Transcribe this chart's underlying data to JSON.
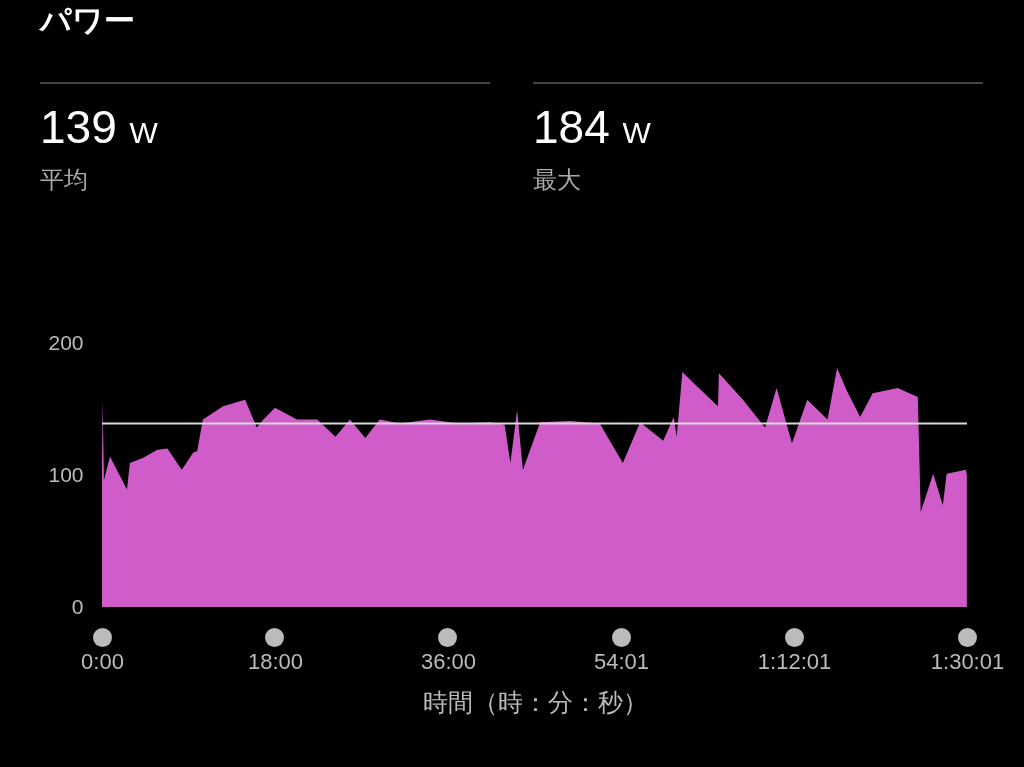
{
  "chart_data": {
    "type": "area",
    "title": "パワー",
    "xlabel": "時間（時：分：秒）",
    "annotations": [
      "139 W",
      "平均",
      "184 W",
      "最大"
    ],
    "x": [
      0,
      0.07,
      0.2,
      0.83,
      2.6,
      2.9,
      4.3,
      5.7,
      6.8,
      8.3,
      9.5,
      9.9,
      10.5,
      12.6,
      14.9,
      16.1,
      16.8,
      18.0,
      20.3,
      22.4,
      24.3,
      25.8,
      27.4,
      28.9,
      31.0,
      34.1,
      37.2,
      40.4,
      41.9,
      42.5,
      43.2,
      43.8,
      45.6,
      48.7,
      51.8,
      54.2,
      56.0,
      58.4,
      59.5,
      59.8,
      60.4,
      61.5,
      64.1,
      64.2,
      66.7,
      69.0,
      70.2,
      71.8,
      73.4,
      75.5,
      76.5,
      77.5,
      78.9,
      80.2,
      82.8,
      84.9,
      85.2,
      86.5,
      87.5,
      87.9,
      89.9,
      90.0
    ],
    "series": [
      {
        "color": "#cf5cc9",
        "values": [
          110,
          157,
          96,
          114,
          89,
          109,
          113,
          119,
          120,
          104,
          117,
          118,
          142,
          152,
          157,
          136,
          142,
          151,
          142,
          142,
          129,
          142,
          128,
          142,
          139,
          142,
          139,
          140,
          138,
          109,
          149,
          104,
          140,
          141,
          139,
          109,
          140,
          126,
          144,
          129,
          178,
          170,
          152,
          177,
          157,
          136,
          166,
          124,
          157,
          142,
          181,
          164,
          144,
          162,
          166,
          159,
          72,
          101,
          77,
          101,
          104,
          100
        ]
      }
    ],
    "xlim": [
      0,
      90.0167
    ],
    "xticks": [
      {
        "value": 0,
        "label": "0:00"
      },
      {
        "value": 18,
        "label": "18:00"
      },
      {
        "value": 36,
        "label": "36:00"
      },
      {
        "value": 54.0167,
        "label": "54:01"
      },
      {
        "value": 72.0167,
        "label": "1:12:01"
      },
      {
        "value": 90.0167,
        "label": "1:30:01"
      }
    ],
    "ylim": [
      0,
      200
    ],
    "yticks": [
      0,
      100,
      200
    ],
    "ref_lines": [
      {
        "axis": "y",
        "value": 139,
        "color": "#d9d9d9"
      }
    ]
  }
}
